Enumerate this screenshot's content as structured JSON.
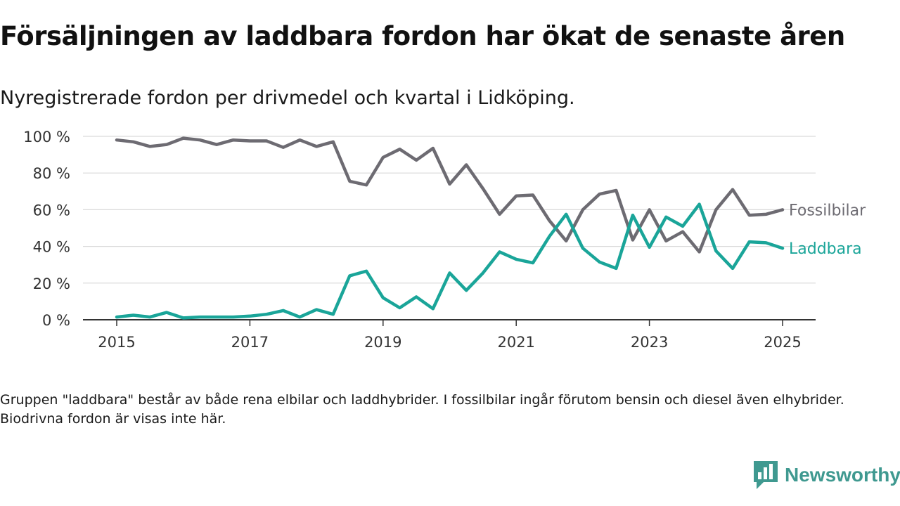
{
  "header": {
    "title": "Försäljningen av laddbara fordon har ökat de senaste åren",
    "subtitle": "Nyregistrerade fordon per drivmedel och kvartal i Lidköping."
  },
  "footer": {
    "note": "Gruppen \"laddbara\" består av både rena elbilar och laddhybrider. I fossilbilar ingår förutom bensin och diesel även elhybrider. Biodrivna fordon är visas inte här.",
    "brand": "Newsworthy",
    "brand_icon": "newsworthy-logo-icon",
    "brand_color": "#3f9990"
  },
  "chart_data": {
    "type": "line",
    "x": [
      2015.0,
      2015.25,
      2015.5,
      2015.75,
      2016.0,
      2016.25,
      2016.5,
      2016.75,
      2017.0,
      2017.25,
      2017.5,
      2017.75,
      2018.0,
      2018.25,
      2018.5,
      2018.75,
      2019.0,
      2019.25,
      2019.5,
      2019.75,
      2020.0,
      2020.25,
      2020.5,
      2020.75,
      2021.0,
      2021.25,
      2021.5,
      2021.75,
      2022.0,
      2022.25,
      2022.5,
      2022.75,
      2023.0,
      2023.25,
      2023.5,
      2023.75,
      2024.0,
      2024.25,
      2024.5,
      2024.75,
      2025.0
    ],
    "series": [
      {
        "name": "Fossilbilar",
        "color": "#6d6b72",
        "values": [
          98,
          97,
          94.5,
          95.5,
          99,
          98,
          95.5,
          98,
          97.5,
          97.5,
          94,
          98,
          94.5,
          97,
          75.5,
          73.5,
          88.5,
          93,
          87,
          93.5,
          74,
          84.5,
          71.5,
          57.5,
          67.5,
          68,
          54,
          43,
          60,
          68.5,
          70.5,
          43.5,
          60,
          43,
          48,
          37,
          60,
          71,
          57,
          57.5,
          60
        ]
      },
      {
        "name": "Laddbara",
        "color": "#1aa599",
        "values": [
          1.5,
          2.5,
          1.5,
          4,
          1,
          1.5,
          1.5,
          1.5,
          2,
          3,
          5,
          1.5,
          5.5,
          3,
          24,
          26.5,
          12,
          6.5,
          12.5,
          6,
          25.5,
          16,
          25.5,
          37,
          33,
          31,
          45.5,
          57.5,
          39,
          31.5,
          28,
          57,
          39.5,
          56,
          51,
          63,
          37.5,
          28,
          42.5,
          42,
          39
        ]
      }
    ],
    "xticks": [
      "2015",
      "2017",
      "2019",
      "2021",
      "2023",
      "2025"
    ],
    "yticks": [
      "0 %",
      "20 %",
      "40 %",
      "60 %",
      "80 %",
      "100 %"
    ],
    "xlim": [
      2014.5,
      2025.5
    ],
    "ylim": [
      0,
      100
    ],
    "grid": true,
    "legend": "inline-end-labels",
    "xlabel": "",
    "ylabel": ""
  }
}
